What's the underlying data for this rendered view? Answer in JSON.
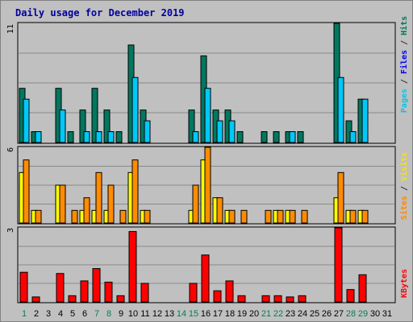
{
  "chart_data": {
    "type": "bar",
    "title": "Daily usage for December 2019",
    "categories": [
      "1",
      "2",
      "3",
      "4",
      "5",
      "6",
      "7",
      "8",
      "9",
      "10",
      "11",
      "12",
      "13",
      "14",
      "15",
      "16",
      "17",
      "18",
      "19",
      "20",
      "21",
      "22",
      "23",
      "24",
      "25",
      "26",
      "27",
      "28",
      "29",
      "30",
      "31"
    ],
    "weekend_days": [
      "1",
      "7",
      "8",
      "14",
      "15",
      "21",
      "22",
      "28",
      "29"
    ],
    "panels": [
      {
        "id": "hits",
        "ymax_label": "11",
        "ylim": [
          0,
          11
        ],
        "label_parts": [
          {
            "text": "Pages",
            "color": "#00c8e8"
          },
          {
            "text": " / ",
            "color": "#333333"
          },
          {
            "text": "Files",
            "color": "#0000ff"
          },
          {
            "text": " / ",
            "color": "#333333"
          },
          {
            "text": "Hits",
            "color": "#007858"
          }
        ],
        "series": [
          {
            "name": "Hits",
            "color": "#007860",
            "values": [
              5,
              1,
              0,
              5,
              1,
              3,
              5,
              3,
              1,
              9,
              3,
              0,
              0,
              0,
              3,
              8,
              3,
              3,
              1,
              0,
              1,
              1,
              1,
              1,
              0,
              0,
              11,
              2,
              4,
              0,
              0
            ]
          },
          {
            "name": "Files",
            "color": "#00c8f8",
            "values": [
              4,
              1,
              0,
              3,
              0,
              1,
              1,
              1,
              0,
              6,
              2,
              0,
              0,
              0,
              1,
              5,
              2,
              2,
              0,
              0,
              0,
              0,
              1,
              0,
              0,
              0,
              6,
              1,
              4,
              0,
              0
            ]
          }
        ]
      },
      {
        "id": "visits",
        "ymax_label": "6",
        "ylim": [
          0,
          6
        ],
        "label_parts": [
          {
            "text": "Sites",
            "color": "#ff8800"
          },
          {
            "text": " / ",
            "color": "#333333"
          },
          {
            "text": "Visits",
            "color": "#ffe000"
          }
        ],
        "series": [
          {
            "name": "Visits",
            "color": "#ffff00",
            "values": [
              4,
              1,
              0,
              3,
              0,
              1,
              1,
              1,
              0,
              4,
              1,
              0,
              0,
              0,
              1,
              5,
              2,
              1,
              0,
              0,
              0,
              1,
              1,
              0,
              0,
              0,
              2,
              1,
              1,
              0,
              0
            ]
          },
          {
            "name": "Sites",
            "color": "#ff8c00",
            "values": [
              5,
              1,
              0,
              3,
              1,
              2,
              4,
              3,
              1,
              5,
              1,
              0,
              0,
              0,
              3,
              6,
              2,
              1,
              1,
              0,
              1,
              1,
              1,
              1,
              0,
              0,
              4,
              1,
              1,
              0,
              0
            ]
          }
        ]
      },
      {
        "id": "kbytes",
        "ymax_label": "3",
        "ylim": [
          0,
          3
        ],
        "label_parts": [
          {
            "text": "KBytes",
            "color": "#ff0000"
          }
        ],
        "series": [
          {
            "name": "KBytes",
            "color": "#ff0000",
            "values": [
              1.2,
              0.2,
              0,
              1.15,
              0.25,
              0.85,
              1.35,
              0.8,
              0.25,
              2.85,
              0.75,
              0,
              0,
              0,
              0.75,
              1.9,
              0.45,
              0.85,
              0.25,
              0,
              0.25,
              0.25,
              0.2,
              0.25,
              0,
              0,
              3,
              0.5,
              1.1,
              0,
              0
            ]
          }
        ]
      }
    ]
  }
}
